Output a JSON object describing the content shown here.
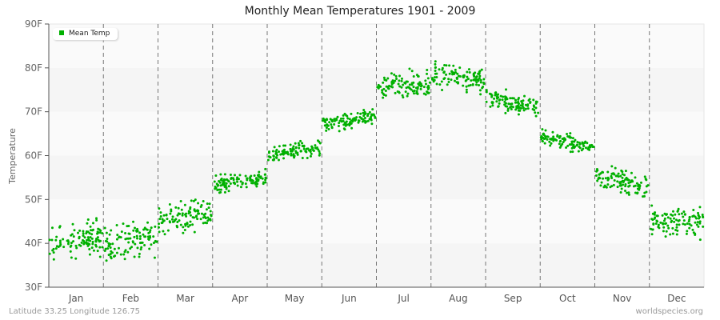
{
  "chart_data": {
    "type": "scatter",
    "title": "Monthly Mean Temperatures 1901 - 2009",
    "ylabel": "Temperature",
    "xlabel": "",
    "ylim": [
      30,
      90
    ],
    "yticks": [
      "30F",
      "40F",
      "50F",
      "60F",
      "70F",
      "80F",
      "90F"
    ],
    "categories": [
      "Jan",
      "Feb",
      "Mar",
      "Apr",
      "May",
      "Jun",
      "Jul",
      "Aug",
      "Sep",
      "Oct",
      "Nov",
      "Dec"
    ],
    "series": [
      {
        "name": "Mean Temp",
        "color": "#00b000",
        "month_ranges": [
          [
            41,
            35,
            47
          ],
          [
            40.5,
            36,
            48
          ],
          [
            46,
            41,
            51
          ],
          [
            54,
            51,
            57
          ],
          [
            61,
            59,
            65
          ],
          [
            68,
            65,
            71
          ],
          [
            76,
            71,
            80
          ],
          [
            78,
            73,
            82
          ],
          [
            72,
            69,
            76
          ],
          [
            63,
            60,
            66
          ],
          [
            54,
            50,
            58
          ],
          [
            45,
            39,
            49
          ]
        ]
      }
    ],
    "legend_position": "top-left",
    "grid": true
  },
  "footer": {
    "left": "Latitude 33.25 Longitude 126.75",
    "right": "worldspecies.org"
  }
}
